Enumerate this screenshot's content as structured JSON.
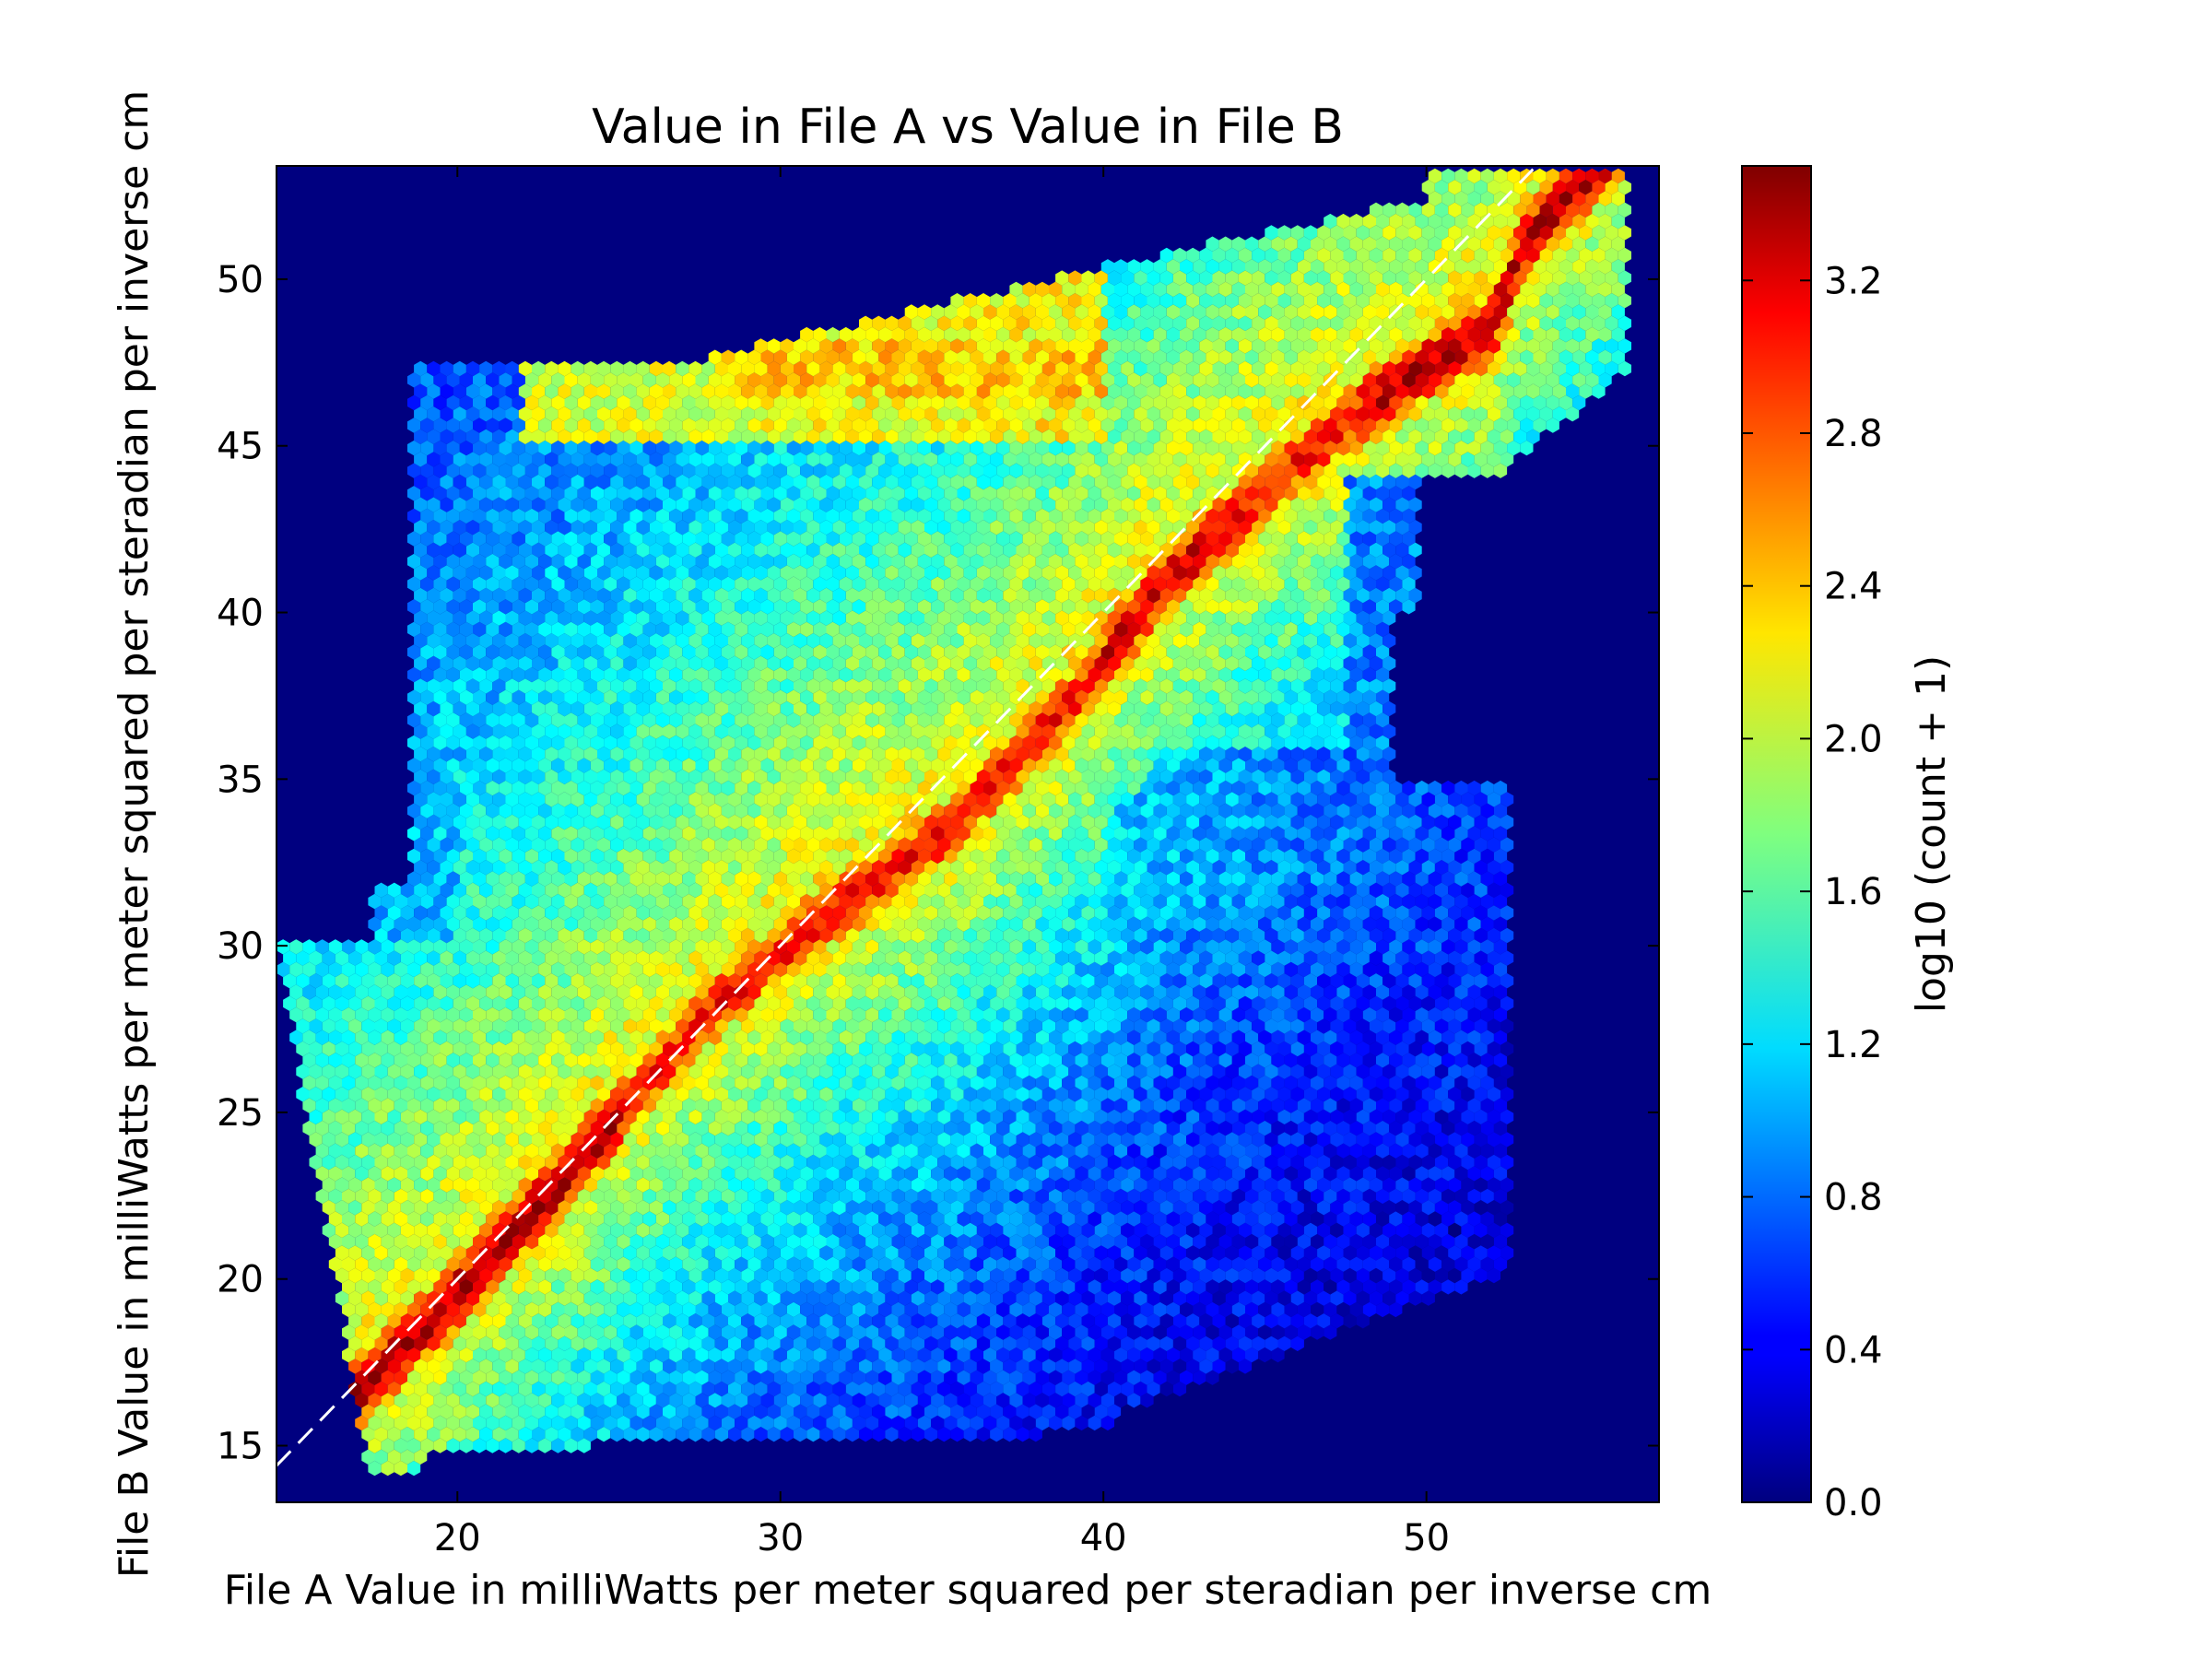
{
  "chart_data": {
    "type": "heatmap",
    "subtype": "hexbin",
    "title": "Value in File A vs Value in File B",
    "xlabel": "File A Value in milliWatts per meter squared per steradian per inverse cm",
    "ylabel": "File B Value in milliWatts per meter squared per steradian per inverse cm",
    "xlim": [
      14.4,
      57.2
    ],
    "ylim": [
      13.3,
      53.4
    ],
    "x_ticks": [
      20,
      30,
      40,
      50
    ],
    "y_ticks": [
      15,
      20,
      25,
      30,
      35,
      40,
      45,
      50
    ],
    "grid": false,
    "background_color": "#000080",
    "colormap": "jet",
    "colorbar": {
      "label": "log10 (count + 1)",
      "range": [
        0.0,
        3.5
      ],
      "ticks": [
        "0.0",
        "0.4",
        "0.8",
        "1.2",
        "1.6",
        "2.0",
        "2.4",
        "2.8",
        "3.2"
      ]
    },
    "reference_line": {
      "from": [
        14.4,
        14.4
      ],
      "to": [
        53.3,
        53.3
      ],
      "style": "dashed",
      "color": "#ffffff"
    },
    "density_ridge": [
      [
        16,
        15.8
      ],
      [
        20,
        19.5
      ],
      [
        24,
        23.8
      ],
      [
        28,
        28.2
      ],
      [
        31,
        30.6
      ],
      [
        35,
        33.3
      ],
      [
        39,
        37.3
      ],
      [
        42,
        41
      ],
      [
        46,
        44.5
      ],
      [
        49,
        46.8
      ],
      [
        52,
        48.5
      ],
      [
        53,
        51
      ]
    ],
    "data_extent": {
      "x_range": [
        14.4,
        56.3
      ],
      "y_range": [
        14,
        53
      ],
      "sparse_regions": [
        "upper-left (x 18-24, y 43-47)",
        "lower-right (x 40-53, y 17-35)"
      ]
    }
  }
}
